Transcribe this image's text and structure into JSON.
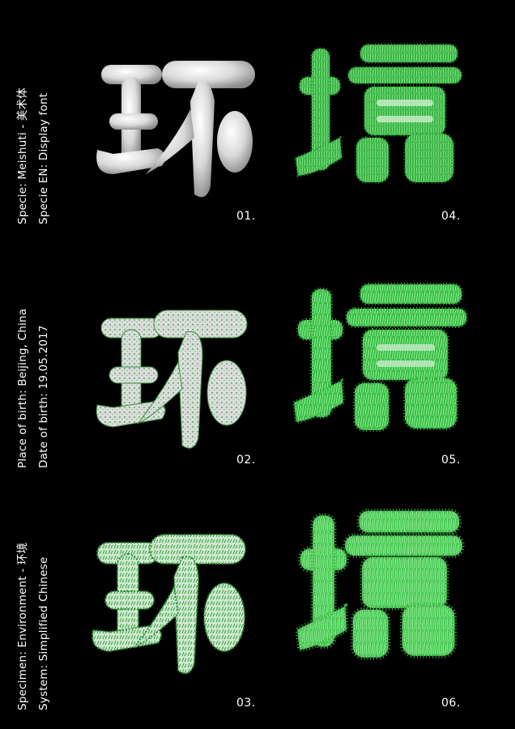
{
  "captions": {
    "group1": {
      "line1": "Specie: Meishuti - 美术体",
      "line2": "Specie EN: Display font"
    },
    "group2": {
      "line1": "Place of birth: Beijing, China",
      "line2": "Date of birth: 19.05.2017"
    },
    "group3": {
      "line1": "Specimen: Environment - 环境",
      "line2": "System: Simplified Chinese"
    }
  },
  "panels": [
    {
      "number": "01.",
      "character": "环",
      "texture": "smooth"
    },
    {
      "number": "02.",
      "character": "环",
      "texture": "light-fur"
    },
    {
      "number": "03.",
      "character": "环",
      "texture": "medium-fur"
    },
    {
      "number": "04.",
      "character": "境",
      "texture": "fur"
    },
    {
      "number": "05.",
      "character": "境",
      "texture": "long-fur"
    },
    {
      "number": "06.",
      "character": "境",
      "texture": "dense-long-fur"
    }
  ],
  "colors": {
    "background": "#000000",
    "smooth": "#e6e6e6",
    "fur": "#3fbf4a",
    "fur_highlight": "#8ff08f"
  }
}
